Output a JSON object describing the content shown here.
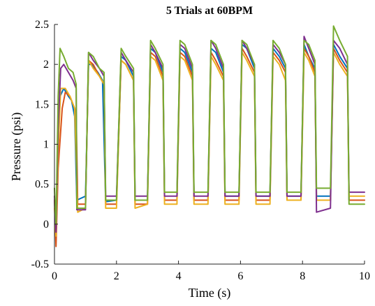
{
  "chart_data": {
    "type": "line",
    "title": "5 Trials at 60BPM",
    "xlabel": "Time (s)",
    "ylabel": "Pressure (psi)",
    "xlim": [
      0,
      10
    ],
    "ylim": [
      -0.5,
      2.5
    ],
    "xticks": [
      0,
      2,
      4,
      6,
      8,
      10
    ],
    "xtick_labels": [
      "0",
      "2",
      "4",
      "6",
      "8",
      "10"
    ],
    "yticks": [
      -0.5,
      0,
      0.5,
      1,
      1.5,
      2,
      2.5
    ],
    "ytick_labels": [
      "-0.5",
      "0",
      "0.5",
      "1",
      "1.5",
      "2",
      "2.5"
    ],
    "grid": false,
    "legend": false,
    "cycle_period_s": 1.0,
    "series": [
      {
        "color": "#0072BD",
        "points": [
          [
            0.0,
            0.3
          ],
          [
            0.05,
            -0.2
          ],
          [
            0.1,
            0.8
          ],
          [
            0.18,
            1.6
          ],
          [
            0.3,
            1.7
          ],
          [
            0.45,
            1.6
          ],
          [
            0.55,
            1.55
          ],
          [
            0.65,
            1.35
          ],
          [
            0.72,
            0.3
          ],
          [
            1.0,
            0.35
          ],
          [
            1.1,
            2.0
          ],
          [
            1.2,
            2.0
          ],
          [
            1.4,
            1.9
          ],
          [
            1.55,
            1.8
          ],
          [
            1.65,
            0.28
          ],
          [
            2.0,
            0.3
          ],
          [
            2.15,
            2.1
          ],
          [
            2.3,
            2.05
          ],
          [
            2.55,
            1.85
          ],
          [
            2.6,
            0.3
          ],
          [
            3.0,
            0.3
          ],
          [
            3.1,
            2.2
          ],
          [
            3.25,
            2.15
          ],
          [
            3.5,
            1.9
          ],
          [
            3.55,
            0.3
          ],
          [
            3.95,
            0.3
          ],
          [
            4.05,
            2.2
          ],
          [
            4.2,
            2.15
          ],
          [
            4.45,
            1.9
          ],
          [
            4.5,
            0.3
          ],
          [
            4.95,
            0.3
          ],
          [
            5.05,
            2.2
          ],
          [
            5.2,
            2.15
          ],
          [
            5.45,
            1.9
          ],
          [
            5.5,
            0.35
          ],
          [
            5.95,
            0.35
          ],
          [
            6.05,
            2.25
          ],
          [
            6.2,
            2.2
          ],
          [
            6.45,
            1.95
          ],
          [
            6.5,
            0.35
          ],
          [
            6.95,
            0.35
          ],
          [
            7.05,
            2.2
          ],
          [
            7.25,
            2.1
          ],
          [
            7.45,
            1.95
          ],
          [
            7.5,
            0.35
          ],
          [
            7.95,
            0.35
          ],
          [
            8.05,
            2.25
          ],
          [
            8.2,
            2.1
          ],
          [
            8.4,
            1.95
          ],
          [
            8.45,
            0.35
          ],
          [
            8.9,
            0.35
          ],
          [
            9.0,
            2.25
          ],
          [
            9.2,
            2.1
          ],
          [
            9.45,
            1.95
          ],
          [
            9.5,
            0.3
          ],
          [
            10.0,
            0.3
          ]
        ]
      },
      {
        "color": "#D95319",
        "points": [
          [
            0.0,
            0.3
          ],
          [
            0.05,
            -0.28
          ],
          [
            0.12,
            0.7
          ],
          [
            0.25,
            1.45
          ],
          [
            0.35,
            1.65
          ],
          [
            0.5,
            1.6
          ],
          [
            0.6,
            1.5
          ],
          [
            0.7,
            1.4
          ],
          [
            0.75,
            0.25
          ],
          [
            1.0,
            0.25
          ],
          [
            1.1,
            2.05
          ],
          [
            1.25,
            2.0
          ],
          [
            1.45,
            1.85
          ],
          [
            1.6,
            1.75
          ],
          [
            1.65,
            0.25
          ],
          [
            2.0,
            0.25
          ],
          [
            2.15,
            2.05
          ],
          [
            2.3,
            2.0
          ],
          [
            2.55,
            1.8
          ],
          [
            2.6,
            0.25
          ],
          [
            3.0,
            0.25
          ],
          [
            3.1,
            2.15
          ],
          [
            3.25,
            2.1
          ],
          [
            3.5,
            1.85
          ],
          [
            3.55,
            0.3
          ],
          [
            3.95,
            0.3
          ],
          [
            4.05,
            2.15
          ],
          [
            4.2,
            2.1
          ],
          [
            4.45,
            1.85
          ],
          [
            4.5,
            0.3
          ],
          [
            4.95,
            0.3
          ],
          [
            5.05,
            2.15
          ],
          [
            5.2,
            2.05
          ],
          [
            5.45,
            1.85
          ],
          [
            5.5,
            0.3
          ],
          [
            5.95,
            0.3
          ],
          [
            6.05,
            2.2
          ],
          [
            6.2,
            2.1
          ],
          [
            6.45,
            1.9
          ],
          [
            6.5,
            0.3
          ],
          [
            6.95,
            0.3
          ],
          [
            7.05,
            2.15
          ],
          [
            7.25,
            2.05
          ],
          [
            7.45,
            1.9
          ],
          [
            7.5,
            0.3
          ],
          [
            7.95,
            0.3
          ],
          [
            8.05,
            2.2
          ],
          [
            8.2,
            2.1
          ],
          [
            8.4,
            1.9
          ],
          [
            8.45,
            0.3
          ],
          [
            8.9,
            0.3
          ],
          [
            9.0,
            2.2
          ],
          [
            9.2,
            2.05
          ],
          [
            9.45,
            1.9
          ],
          [
            9.5,
            0.3
          ],
          [
            10.0,
            0.3
          ]
        ]
      },
      {
        "color": "#EDB120",
        "points": [
          [
            0.0,
            0.2
          ],
          [
            0.05,
            -0.15
          ],
          [
            0.12,
            0.9
          ],
          [
            0.2,
            1.7
          ],
          [
            0.35,
            1.7
          ],
          [
            0.5,
            1.6
          ],
          [
            0.65,
            1.45
          ],
          [
            0.75,
            0.15
          ],
          [
            1.0,
            0.2
          ],
          [
            1.1,
            2.05
          ],
          [
            1.25,
            1.95
          ],
          [
            1.45,
            1.85
          ],
          [
            1.6,
            1.75
          ],
          [
            1.65,
            0.2
          ],
          [
            2.0,
            0.2
          ],
          [
            2.15,
            2.05
          ],
          [
            2.3,
            2.0
          ],
          [
            2.55,
            1.8
          ],
          [
            2.6,
            0.2
          ],
          [
            3.0,
            0.25
          ],
          [
            3.1,
            2.1
          ],
          [
            3.25,
            2.05
          ],
          [
            3.5,
            1.8
          ],
          [
            3.55,
            0.25
          ],
          [
            3.95,
            0.25
          ],
          [
            4.05,
            2.1
          ],
          [
            4.2,
            2.05
          ],
          [
            4.45,
            1.8
          ],
          [
            4.5,
            0.25
          ],
          [
            4.95,
            0.25
          ],
          [
            5.05,
            2.1
          ],
          [
            5.2,
            2.0
          ],
          [
            5.45,
            1.8
          ],
          [
            5.5,
            0.25
          ],
          [
            5.95,
            0.25
          ],
          [
            6.05,
            2.15
          ],
          [
            6.2,
            2.05
          ],
          [
            6.45,
            1.85
          ],
          [
            6.5,
            0.25
          ],
          [
            6.95,
            0.25
          ],
          [
            7.05,
            2.1
          ],
          [
            7.25,
            2.0
          ],
          [
            7.45,
            1.8
          ],
          [
            7.5,
            0.3
          ],
          [
            7.95,
            0.3
          ],
          [
            8.05,
            2.15
          ],
          [
            8.2,
            2.05
          ],
          [
            8.4,
            1.85
          ],
          [
            8.45,
            0.3
          ],
          [
            8.9,
            0.3
          ],
          [
            9.0,
            2.15
          ],
          [
            9.2,
            2.0
          ],
          [
            9.45,
            1.85
          ],
          [
            9.5,
            0.35
          ],
          [
            10.0,
            0.35
          ]
        ]
      },
      {
        "color": "#7E2F8E",
        "points": [
          [
            0.0,
            0.35
          ],
          [
            0.05,
            -0.1
          ],
          [
            0.12,
            1.2
          ],
          [
            0.2,
            1.95
          ],
          [
            0.3,
            2.0
          ],
          [
            0.45,
            1.9
          ],
          [
            0.6,
            1.8
          ],
          [
            0.7,
            1.7
          ],
          [
            0.72,
            0.18
          ],
          [
            1.0,
            0.18
          ],
          [
            1.1,
            2.15
          ],
          [
            1.25,
            2.05
          ],
          [
            1.45,
            1.95
          ],
          [
            1.6,
            1.85
          ],
          [
            1.65,
            0.35
          ],
          [
            2.0,
            0.35
          ],
          [
            2.15,
            2.15
          ],
          [
            2.3,
            2.05
          ],
          [
            2.55,
            1.9
          ],
          [
            2.6,
            0.35
          ],
          [
            3.0,
            0.35
          ],
          [
            3.1,
            2.25
          ],
          [
            3.25,
            2.15
          ],
          [
            3.5,
            1.95
          ],
          [
            3.55,
            0.35
          ],
          [
            3.95,
            0.35
          ],
          [
            4.05,
            2.25
          ],
          [
            4.2,
            2.2
          ],
          [
            4.45,
            1.95
          ],
          [
            4.5,
            0.35
          ],
          [
            4.95,
            0.35
          ],
          [
            5.05,
            2.3
          ],
          [
            5.2,
            2.2
          ],
          [
            5.45,
            1.95
          ],
          [
            5.5,
            0.35
          ],
          [
            5.95,
            0.35
          ],
          [
            6.05,
            2.3
          ],
          [
            6.2,
            2.2
          ],
          [
            6.45,
            2.0
          ],
          [
            6.5,
            0.35
          ],
          [
            6.95,
            0.35
          ],
          [
            7.05,
            2.25
          ],
          [
            7.25,
            2.15
          ],
          [
            7.45,
            2.0
          ],
          [
            7.5,
            0.35
          ],
          [
            7.95,
            0.35
          ],
          [
            8.05,
            2.35
          ],
          [
            8.2,
            2.2
          ],
          [
            8.4,
            2.0
          ],
          [
            8.45,
            0.15
          ],
          [
            8.9,
            0.2
          ],
          [
            9.0,
            2.3
          ],
          [
            9.2,
            2.2
          ],
          [
            9.45,
            2.0
          ],
          [
            9.5,
            0.4
          ],
          [
            10.0,
            0.4
          ]
        ]
      },
      {
        "color": "#77AC30",
        "points": [
          [
            0.0,
            0.45
          ],
          [
            0.05,
            0.0
          ],
          [
            0.12,
            1.6
          ],
          [
            0.18,
            2.2
          ],
          [
            0.3,
            2.1
          ],
          [
            0.45,
            1.95
          ],
          [
            0.6,
            1.9
          ],
          [
            0.7,
            1.75
          ],
          [
            0.72,
            0.2
          ],
          [
            1.0,
            0.2
          ],
          [
            1.1,
            2.15
          ],
          [
            1.25,
            2.1
          ],
          [
            1.45,
            1.95
          ],
          [
            1.6,
            1.9
          ],
          [
            1.65,
            0.3
          ],
          [
            2.0,
            0.3
          ],
          [
            2.15,
            2.2
          ],
          [
            2.3,
            2.1
          ],
          [
            2.55,
            1.95
          ],
          [
            2.6,
            0.3
          ],
          [
            3.0,
            0.3
          ],
          [
            3.1,
            2.3
          ],
          [
            3.25,
            2.2
          ],
          [
            3.5,
            2.0
          ],
          [
            3.55,
            0.4
          ],
          [
            3.95,
            0.4
          ],
          [
            4.05,
            2.3
          ],
          [
            4.2,
            2.25
          ],
          [
            4.45,
            2.0
          ],
          [
            4.5,
            0.4
          ],
          [
            4.95,
            0.4
          ],
          [
            5.05,
            2.3
          ],
          [
            5.2,
            2.25
          ],
          [
            5.45,
            2.0
          ],
          [
            5.5,
            0.4
          ],
          [
            5.95,
            0.4
          ],
          [
            6.05,
            2.3
          ],
          [
            6.2,
            2.25
          ],
          [
            6.45,
            2.0
          ],
          [
            6.5,
            0.4
          ],
          [
            6.95,
            0.4
          ],
          [
            7.05,
            2.3
          ],
          [
            7.25,
            2.2
          ],
          [
            7.45,
            2.0
          ],
          [
            7.5,
            0.4
          ],
          [
            7.95,
            0.4
          ],
          [
            8.05,
            2.3
          ],
          [
            8.2,
            2.25
          ],
          [
            8.4,
            2.05
          ],
          [
            8.45,
            0.45
          ],
          [
            8.9,
            0.45
          ],
          [
            9.0,
            2.48
          ],
          [
            9.2,
            2.3
          ],
          [
            9.45,
            2.1
          ],
          [
            9.5,
            0.25
          ],
          [
            10.0,
            0.25
          ]
        ]
      }
    ]
  }
}
